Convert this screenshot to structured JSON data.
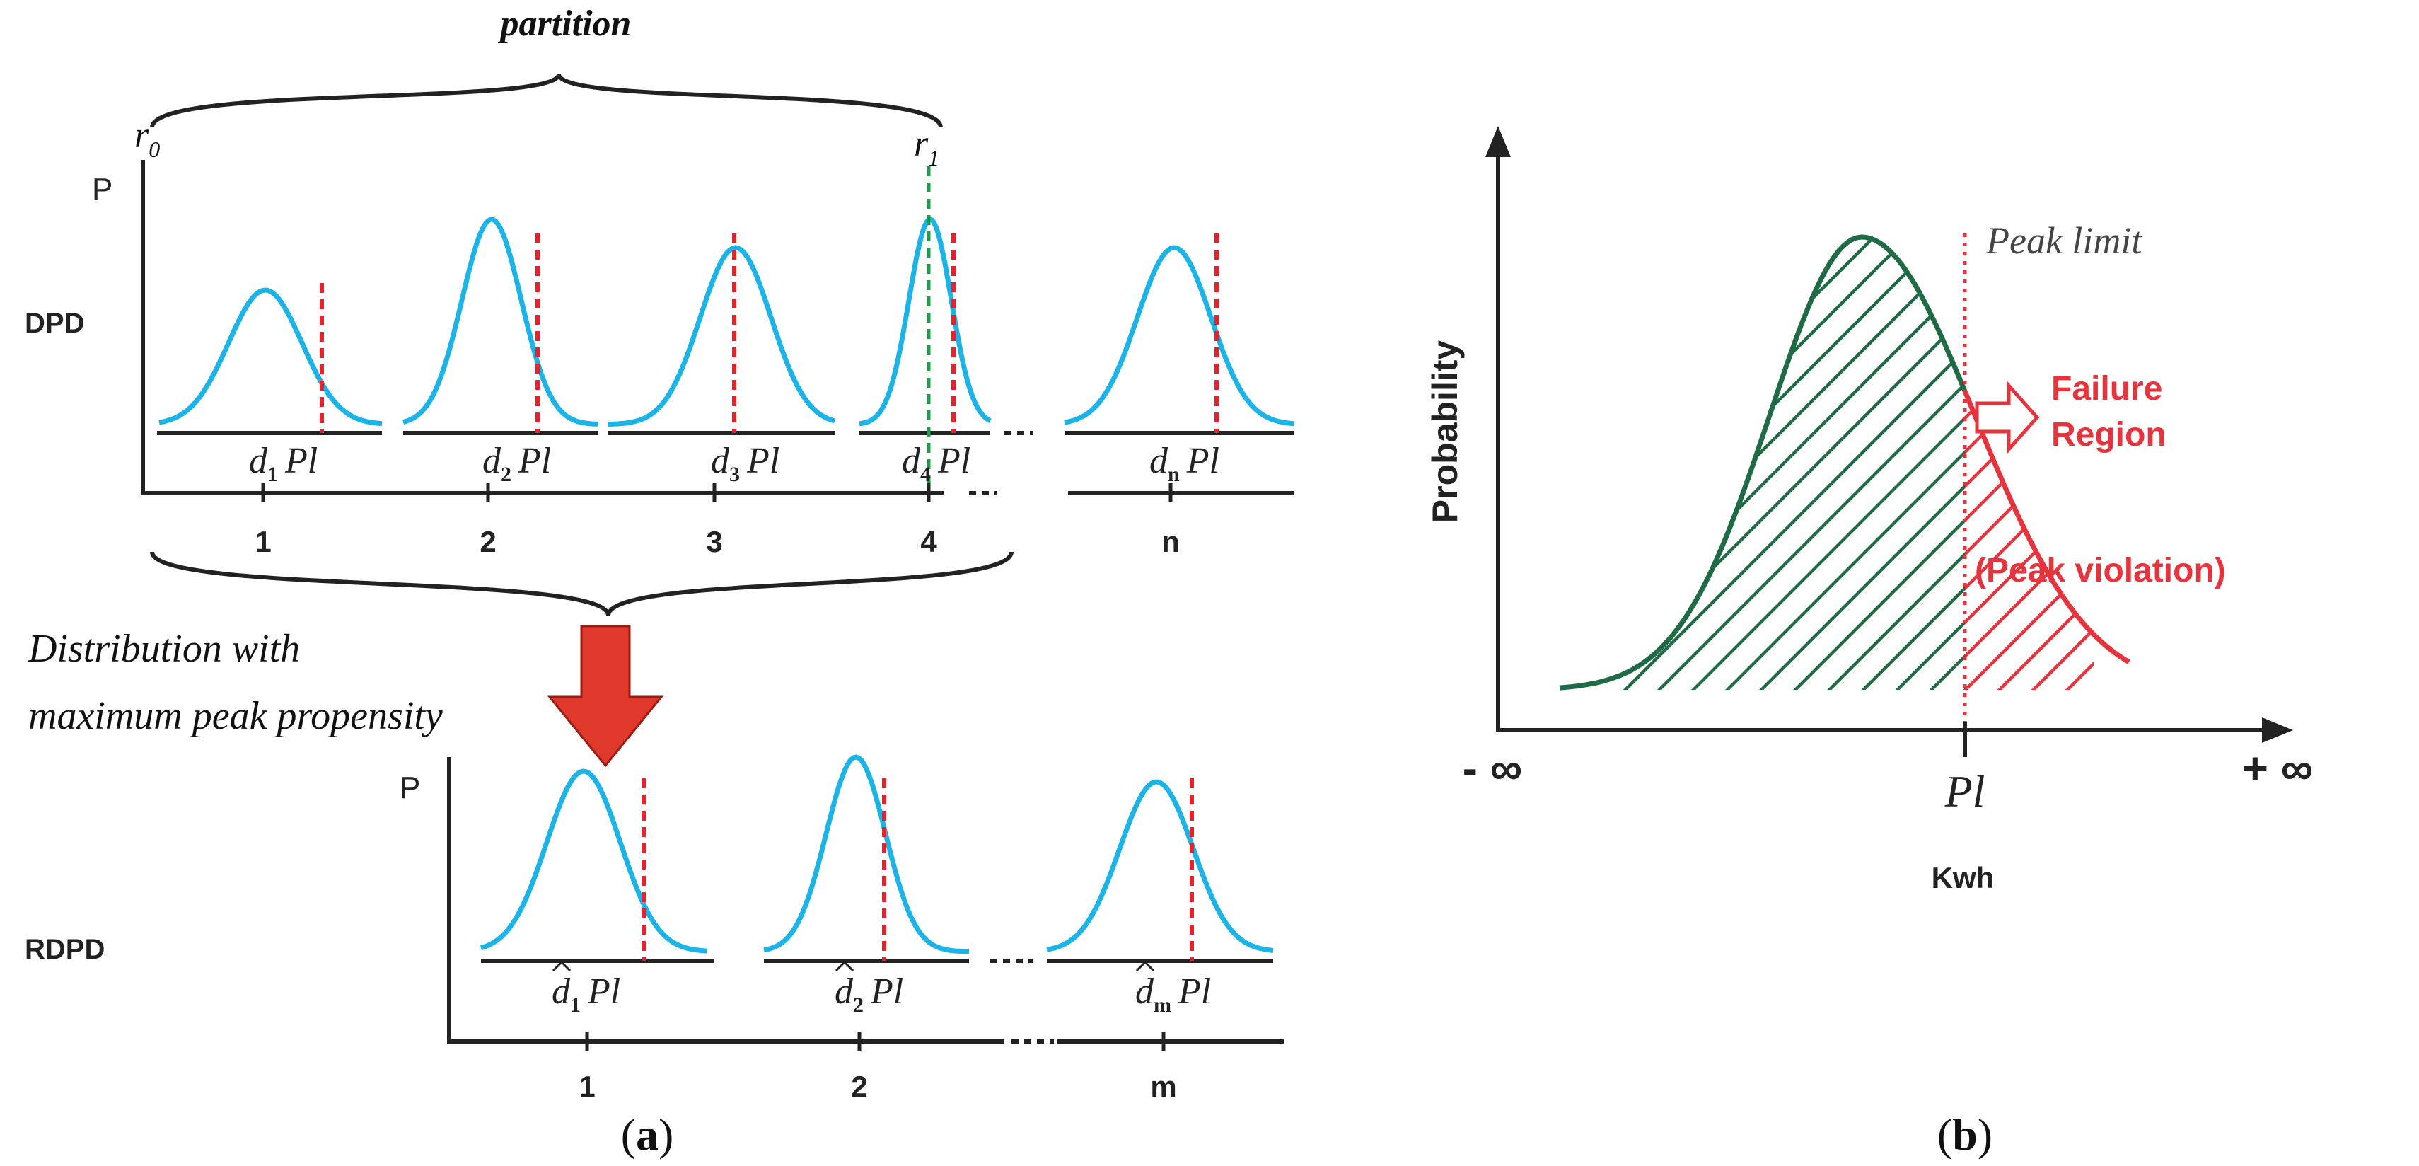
{
  "panel_a": {
    "caption_open": "(",
    "caption_letter": "a",
    "caption_close": ")",
    "partition_label": "partition",
    "r0_label": "r",
    "r0_sub": "0",
    "r1_label": "r",
    "r1_sub": "1",
    "dpd": {
      "row_label": "DPD",
      "p_label": "P",
      "items": [
        {
          "d_letter": "d",
          "d_sub": "1",
          "pl": "Pl",
          "index": "1"
        },
        {
          "d_letter": "d",
          "d_sub": "2",
          "pl": "Pl",
          "index": "2"
        },
        {
          "d_letter": "d",
          "d_sub": "3",
          "pl": "Pl",
          "index": "3"
        },
        {
          "d_letter": "d",
          "d_sub": "4",
          "pl": "Pl",
          "index": "4"
        },
        {
          "d_letter": "d",
          "d_sub": "n",
          "pl": "Pl",
          "index": "n"
        }
      ]
    },
    "arrow_text_line1": "Distribution with",
    "arrow_text_line2": "maximum peak propensity",
    "rdpd": {
      "row_label": "RDPD",
      "p_label": "P",
      "items": [
        {
          "d_letter": "d",
          "d_sub": "1",
          "pl": "Pl",
          "index": "1"
        },
        {
          "d_letter": "d",
          "d_sub": "2",
          "pl": "Pl",
          "index": "2"
        },
        {
          "d_letter": "d",
          "d_sub": "m",
          "pl": "Pl",
          "index": "m"
        }
      ]
    }
  },
  "panel_b": {
    "caption_open": "(",
    "caption_letter": "b",
    "caption_close": ")",
    "y_label": "Probability",
    "x_label": "Kwh",
    "x_left": "- ∞",
    "x_right": "+ ∞",
    "pl_tick": "Pl",
    "peak_limit_label": "Peak limit",
    "failure_line1": "Failure",
    "failure_line2": "Region",
    "violation_label": "(Peak violation)"
  },
  "colors": {
    "curve_blue": "#1ab4e8",
    "limit_red": "#e8212a",
    "green_fill": "#1f6b45",
    "failure_red": "#e8323c",
    "arrow_red": "#e0392b",
    "marker_green": "#1f9e4a"
  }
}
